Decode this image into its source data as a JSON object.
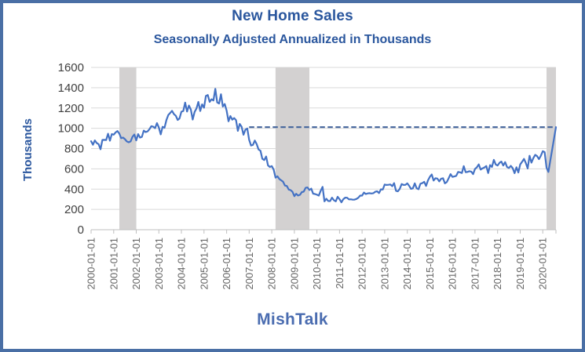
{
  "chart_data": {
    "type": "line",
    "title": "New Home Sales",
    "subtitle": "Seasonally Adjusted Annualized in Thousands",
    "ylabel": "Thousands",
    "footer": "MishTalk",
    "ylim": [
      0,
      1600
    ],
    "yticks": [
      0,
      200,
      400,
      600,
      800,
      1000,
      1200,
      1400,
      1600
    ],
    "xtick_labels": [
      "2000-01-01",
      "2001-01-01",
      "2002-01-01",
      "2003-01-01",
      "2004-01-01",
      "2005-01-01",
      "2006-01-01",
      "2007-01-01",
      "2008-01-01",
      "2009-01-01",
      "2010-01-01",
      "2011-01-01",
      "2012-01-01",
      "2013-01-01",
      "2014-01-01",
      "2015-01-01",
      "2016-01-01",
      "2017-01-01",
      "2018-01-01",
      "2019-01-01",
      "2020-01-01"
    ],
    "x_monthly_start": "2000-01",
    "x_monthly_end": "2020-08",
    "grid": true,
    "legend": false,
    "series": [
      {
        "name": "New Home Sales (SAAR, thousands)",
        "color": "#4472C4",
        "monthly_values": [
          873,
          838,
          880,
          854,
          843,
          793,
          885,
          886,
          884,
          946,
          877,
          943,
          937,
          959,
          972,
          947,
          903,
          908,
          893,
          870,
          862,
          870,
          915,
          938,
          880,
          943,
          908,
          915,
          977,
          962,
          969,
          991,
          1020,
          1016,
          1001,
          1051,
          1007,
          940,
          1015,
          1005,
          1080,
          1131,
          1151,
          1172,
          1139,
          1123,
          1082,
          1097,
          1163,
          1170,
          1253,
          1165,
          1224,
          1186,
          1086,
          1161,
          1195,
          1260,
          1170,
          1236,
          1203,
          1319,
          1328,
          1260,
          1286,
          1274,
          1389,
          1255,
          1244,
          1336,
          1214,
          1239,
          1174,
          1069,
          1121,
          1085,
          1101,
          1080,
          975,
          1043,
          1015,
          936,
          986,
          998,
          886,
          830,
          836,
          879,
          843,
          791,
          778,
          699,
          686,
          722,
          634,
          618,
          627,
          593,
          513,
          526,
          500,
          487,
          473,
          435,
          431,
          396,
          390,
          373,
          331,
          354,
          337,
          344,
          371,
          376,
          413,
          417,
          391,
          405,
          355,
          352,
          345,
          336,
          384,
          422,
          280,
          305,
          283,
          282,
          316,
          291,
          280,
          325,
          301,
          270,
          301,
          316,
          315,
          299,
          300,
          296,
          297,
          303,
          315,
          336,
          336,
          366,
          352,
          358,
          360,
          357,
          360,
          374,
          379,
          361,
          398,
          396,
          445,
          441,
          443,
          446,
          429,
          459,
          383,
          379,
          403,
          450,
          441,
          442,
          457,
          432,
          403,
          408,
          457,
          408,
          399,
          453,
          459,
          472,
          431,
          486,
          521,
          545,
          485,
          508,
          504,
          476,
          503,
          507,
          457,
          470,
          508,
          548,
          520,
          525,
          531,
          570,
          566,
          559,
          627,
          567,
          570,
          577,
          573,
          548,
          599,
          615,
          644,
          593,
          605,
          614,
          628,
          559,
          637,
          618,
          689,
          643,
          633,
          659,
          672,
          633,
          666,
          618,
          608,
          629,
          607,
          557,
          615,
          564,
          644,
          669,
          698,
          656,
          604,
          729,
          661,
          706,
          738,
          725,
          696,
          730,
          774,
          765,
          612,
          570,
          682,
          791,
          901,
          1011
        ]
      }
    ],
    "reference_line": {
      "value": 1011,
      "start": "2007-01",
      "style": "dashed",
      "color": "#44659c"
    },
    "recession_bands": [
      {
        "start": "2001-04",
        "end": "2002-01"
      },
      {
        "start": "2008-03",
        "end": "2009-09"
      },
      {
        "start": "2020-03",
        "end": "2020-08"
      }
    ],
    "colors": {
      "band": "#d3d1d1",
      "grid": "#d9d9d9",
      "axis": "#bfbfbf",
      "ytick": "#404040",
      "xtick": "#666666",
      "title": "#2b579e",
      "footer": "#4a6cb0",
      "border": "#4a6fa5",
      "background": "#ffffff"
    }
  }
}
